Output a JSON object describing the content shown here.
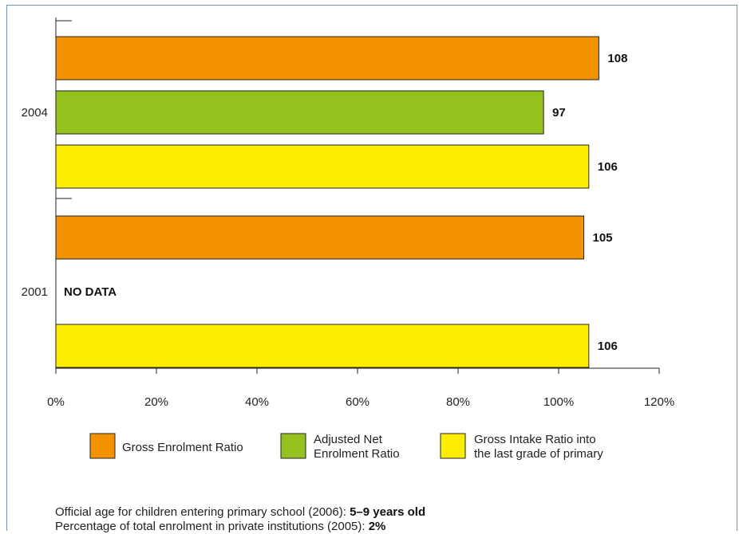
{
  "chart_data": {
    "type": "bar",
    "orientation": "horizontal",
    "categories": [
      "2004",
      "2001"
    ],
    "series": [
      {
        "name": "Gross Enrolment Ratio",
        "color": "#f39200",
        "values": [
          108,
          105
        ]
      },
      {
        "name": "Adjusted Net Enrolment Ratio",
        "color": "#95c11f",
        "values": [
          97,
          null
        ]
      },
      {
        "name": "Gross Intake Ratio into the last grade of primary",
        "color": "#ffed00",
        "values": [
          106,
          106
        ]
      }
    ],
    "data_labels": [
      [
        "108",
        "97",
        "106"
      ],
      [
        "105",
        "",
        "106"
      ]
    ],
    "no_data_label": "NO DATA",
    "xlim": [
      0,
      120
    ],
    "xticks": [
      "0%",
      "20%",
      "40%",
      "60%",
      "80%",
      "100%",
      "120%"
    ],
    "grid": false,
    "legend": {
      "placement": "bottom",
      "lines": [
        [
          "Gross Enrolment Ratio"
        ],
        [
          "Adjusted Net",
          "Enrolment Ratio"
        ],
        [
          "Gross Intake Ratio into",
          "the last grade of primary"
        ]
      ]
    }
  },
  "notes": [
    {
      "text": "Official age for children entering primary school (2006): ",
      "value": "5–9 years old"
    },
    {
      "text": "Percentage of total enrolment in private institutions (2005): ",
      "value": "2%"
    }
  ]
}
